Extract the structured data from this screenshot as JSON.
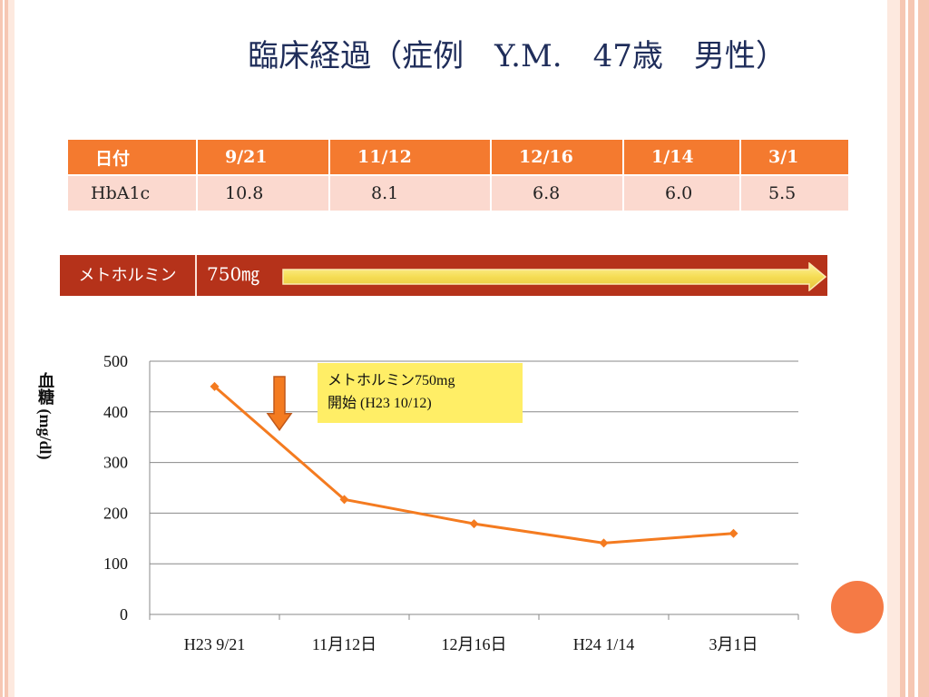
{
  "slide": {
    "title": "臨床経過（症例　Y.M.　47歳　男性）"
  },
  "table": {
    "header": [
      "日付",
      "9/21",
      "11/12",
      "12/16",
      "1/14",
      "3/1"
    ],
    "row": [
      "HbA1c",
      "10.8",
      "8.1",
      "6.8",
      "6.0",
      "5.5"
    ]
  },
  "drug": {
    "name": "メトホルミン",
    "dose": "750㎎"
  },
  "callout": {
    "line1": "メトホルミン750mg",
    "line2": "開始 (H23 10/12)"
  },
  "colors": {
    "accent": "#f47a2f",
    "drug_bar": "#b5321a",
    "line": "#f47b20",
    "callout": "#ffee66"
  },
  "chart_data": {
    "type": "line",
    "categories": [
      "H23 9/21",
      "11月12日",
      "12月16日",
      "H24 1/14",
      "3月1日"
    ],
    "series": [
      {
        "values": [
          450,
          227,
          179,
          141,
          160
        ]
      }
    ],
    "ylabel": "血糖 (mg/dl)",
    "ylim": [
      0,
      500
    ],
    "yticks": [
      0,
      100,
      200,
      300,
      400,
      500
    ],
    "grid": true,
    "annotation_arrow_x": 0.5
  }
}
